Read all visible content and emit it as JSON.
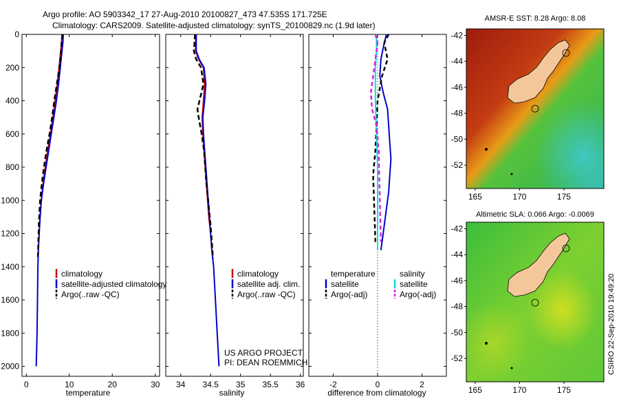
{
  "title_line1": "Argo profile: AO 5903342_17 27-Aug-2010 20100827_473 47.535S 171.725E",
  "title_line2": "Climatology: CARS2009. Satellite-adjusted climatology: synTS_20100829.nc (1.9d later)",
  "side_stamp": "CSIRO 22-Sep-2010 19:49:20",
  "colors": {
    "climatology": "#cc0000",
    "satellite": "#0000cc",
    "argo": "#000000",
    "salinity_satellite": "#00e0e0",
    "salinity_argo": "#e020e0",
    "land": "#f4c79a"
  },
  "chart_data": [
    {
      "type": "line",
      "name": "temperature-profile",
      "xlabel": "temperature",
      "ylabel": "",
      "xlim": [
        -1,
        31
      ],
      "ylim": [
        2060,
        0
      ],
      "xticks": [
        0,
        10,
        20,
        30
      ],
      "yticks": [
        0,
        200,
        400,
        600,
        800,
        1000,
        1200,
        1400,
        1600,
        1800,
        2000
      ],
      "series": [
        {
          "name": "climatology",
          "color": "#cc0000",
          "dash": "",
          "x": [
            8.3,
            8.2,
            8.0,
            7.6,
            7.2,
            6.7,
            6.2,
            5.6,
            5.0,
            4.4,
            3.9,
            3.5,
            3.2
          ],
          "y": [
            0,
            50,
            100,
            200,
            300,
            400,
            500,
            600,
            700,
            800,
            900,
            1000,
            1100
          ]
        },
        {
          "name": "satellite-adjusted climatology",
          "color": "#0000cc",
          "dash": "",
          "x": [
            8.6,
            8.5,
            8.3,
            7.9,
            7.5,
            7.0,
            6.4,
            5.8,
            5.2,
            4.6,
            4.0,
            3.5,
            3.2,
            3.0,
            2.8,
            2.7,
            2.6,
            2.5,
            2.4,
            2.3
          ],
          "y": [
            0,
            50,
            100,
            200,
            300,
            400,
            500,
            600,
            700,
            800,
            900,
            1000,
            1100,
            1200,
            1300,
            1400,
            1600,
            1800,
            1900,
            2000
          ]
        },
        {
          "name": "Argo(..raw -QC)",
          "color": "#000000",
          "dash": "7,4",
          "x": [
            8.4,
            8.2,
            8.1,
            7.7,
            7.1,
            6.5,
            6.0,
            5.4,
            4.7,
            4.1,
            3.6,
            3.2,
            2.9,
            2.7
          ],
          "y": [
            0,
            50,
            100,
            200,
            300,
            400,
            500,
            600,
            700,
            800,
            900,
            1000,
            1150,
            1350
          ]
        }
      ],
      "legend": [
        "climatology",
        "satellite-adjusted climatology",
        "Argo(..raw -QC)"
      ]
    },
    {
      "type": "line",
      "name": "salinity-profile",
      "xlabel": "salinity",
      "ylabel": "",
      "xlim": [
        33.75,
        36.05
      ],
      "ylim": [
        2060,
        0
      ],
      "xticks": [
        34,
        34.5,
        35,
        35.5,
        36
      ],
      "series": [
        {
          "name": "climatology",
          "color": "#cc0000",
          "dash": "",
          "x": [
            34.25,
            34.25,
            34.3,
            34.38,
            34.4,
            34.38,
            34.36,
            34.37,
            34.39,
            34.41,
            34.43,
            34.45,
            34.47,
            34.5
          ],
          "y": [
            0,
            100,
            150,
            200,
            300,
            400,
            500,
            600,
            700,
            800,
            900,
            1000,
            1100,
            1200
          ]
        },
        {
          "name": "satellite adj. clim.",
          "color": "#0000cc",
          "dash": "",
          "x": [
            34.26,
            34.26,
            34.31,
            34.39,
            34.42,
            34.4,
            34.37,
            34.38,
            34.4,
            34.42,
            34.44,
            34.46,
            34.48,
            34.5,
            34.52,
            34.55,
            34.58,
            34.61,
            34.64
          ],
          "y": [
            0,
            100,
            150,
            200,
            300,
            400,
            500,
            600,
            700,
            800,
            900,
            1000,
            1100,
            1200,
            1300,
            1400,
            1600,
            1800,
            2000
          ]
        },
        {
          "name": "Argo(..raw -QC)",
          "color": "#000000",
          "dash": "7,4",
          "x": [
            34.24,
            34.22,
            34.26,
            34.34,
            34.38,
            34.28,
            34.3,
            34.35,
            34.39,
            34.41,
            34.43,
            34.46,
            34.5,
            34.54
          ],
          "y": [
            0,
            100,
            150,
            200,
            300,
            450,
            500,
            600,
            700,
            800,
            900,
            1000,
            1150,
            1350
          ]
        }
      ],
      "legend": [
        "climatology",
        "satellite adj. clim.",
        "Argo(..raw -QC)"
      ],
      "annotation": [
        "US ARGO PROJECT",
        "PI: DEAN ROEMMICH"
      ]
    },
    {
      "type": "line",
      "name": "difference-profile",
      "xlabel": "difference from climatology",
      "ylabel": "",
      "xlim": [
        -3.1,
        3.1
      ],
      "ylim": [
        2060,
        0
      ],
      "xticks": [
        -2,
        0,
        2
      ],
      "series": [
        {
          "name": "temperature satellite",
          "color": "#0000cc",
          "dash": "",
          "x": [
            0.4,
            0.3,
            0.15,
            0.1,
            0.25,
            0.45,
            0.5,
            0.55,
            0.6,
            0.55,
            0.5,
            0.4,
            0.3,
            0.2,
            0.15
          ],
          "y": [
            0,
            50,
            150,
            250,
            350,
            450,
            550,
            650,
            750,
            850,
            950,
            1050,
            1150,
            1250,
            1300
          ]
        },
        {
          "name": "temperature Argo(-adj)",
          "color": "#000000",
          "dash": "6,4",
          "x": [
            0.5,
            0.3,
            0.45,
            0.2,
            0.0,
            -0.05,
            -0.1,
            -0.2,
            -0.15,
            -0.1
          ],
          "y": [
            0,
            50,
            150,
            250,
            400,
            550,
            700,
            850,
            1050,
            1250
          ]
        },
        {
          "name": "salinity satellite",
          "color": "#00e0e0",
          "dash": "",
          "x": [
            -0.05,
            -0.05,
            -0.1,
            -0.1,
            -0.05,
            0.0,
            0.0,
            0.0,
            0.0
          ],
          "y": [
            0,
            100,
            200,
            400,
            600,
            800,
            1000,
            1200,
            1300
          ]
        },
        {
          "name": "salinity Argo(-adj)",
          "color": "#e020e0",
          "dash": "6,4",
          "x": [
            -0.1,
            0.0,
            -0.15,
            -0.3,
            -0.25,
            -0.05,
            0.05,
            0.1,
            0.15
          ],
          "y": [
            0,
            50,
            200,
            350,
            450,
            550,
            700,
            1000,
            1250
          ]
        }
      ],
      "legend_groups": [
        {
          "heading": "temperature",
          "items": [
            "satellite",
            "Argo(-adj)"
          ]
        },
        {
          "heading": "salinity",
          "items": [
            "satellite",
            "Argo(-adj)"
          ]
        }
      ]
    },
    {
      "type": "heatmap",
      "name": "sst-map",
      "title": "AMSR-E SST: 8.28 Argo: 8.08",
      "xlim": [
        164,
        179.5
      ],
      "ylim": [
        -53.8,
        -41.5
      ],
      "xticks": [
        165,
        170,
        175
      ],
      "yticks": [
        -42,
        -44,
        -46,
        -48,
        -50,
        -52
      ],
      "profile_location": [
        171.725,
        -47.535
      ]
    },
    {
      "type": "heatmap",
      "name": "sla-map",
      "title": "Altimetric SLA: 0.066 Argo: -0.0069",
      "xlim": [
        164,
        179.5
      ],
      "ylim": [
        -53.8,
        -41.5
      ],
      "xticks": [
        165,
        170,
        175
      ],
      "yticks": [
        -42,
        -44,
        -46,
        -48,
        -50,
        -52
      ],
      "profile_location": [
        171.725,
        -47.535
      ]
    }
  ]
}
